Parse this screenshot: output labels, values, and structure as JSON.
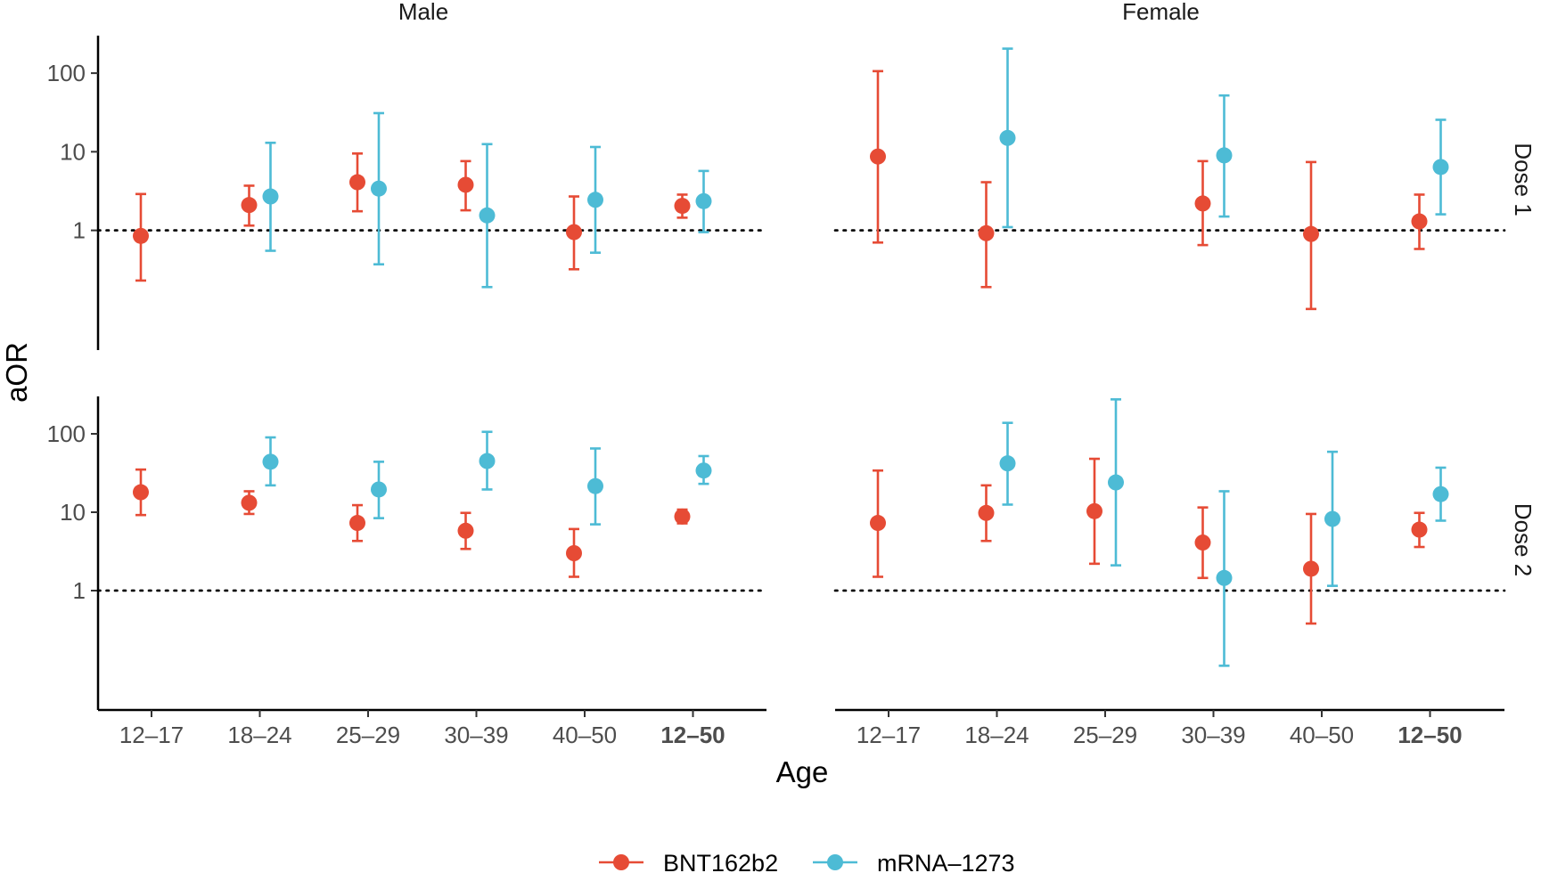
{
  "chart_data": {
    "type": "scatter",
    "subtype": "point-range (point estimate with 95% CI error bars), faceted",
    "xlabel": "Age",
    "ylabel": "aOR",
    "y_scale": "log10",
    "y_ticks": [
      1,
      10,
      100
    ],
    "y_tick_labels": [
      "1",
      "10",
      "100"
    ],
    "reference_line": {
      "y": 1,
      "style": "dotted"
    },
    "categories": [
      "12–17",
      "18–24",
      "25–29",
      "30–39",
      "40–50",
      "12–50"
    ],
    "bold_categories": [
      "12–50"
    ],
    "column_facets": [
      "Male",
      "Female"
    ],
    "row_facets": [
      "Dose 1",
      "Dose 2"
    ],
    "legend": {
      "position": "bottom"
    },
    "series": [
      {
        "name": "BNT162b2",
        "color": "#E64B35"
      },
      {
        "name": "mRNA–1273",
        "color": "#4DBBD5"
      }
    ],
    "panels": [
      {
        "column": "Male",
        "row": "Dose 1",
        "ylim": [
          0.03,
          300
        ],
        "points": [
          {
            "series": "BNT162b2",
            "category": "12–17",
            "y": 0.85,
            "lo": 0.23,
            "hi": 2.9
          },
          {
            "series": "BNT162b2",
            "category": "18–24",
            "y": 2.1,
            "lo": 1.15,
            "hi": 3.7
          },
          {
            "series": "mRNA–1273",
            "category": "18–24",
            "y": 2.7,
            "lo": 0.55,
            "hi": 13
          },
          {
            "series": "BNT162b2",
            "category": "25–29",
            "y": 4.1,
            "lo": 1.75,
            "hi": 9.5
          },
          {
            "series": "mRNA–1273",
            "category": "25–29",
            "y": 3.4,
            "lo": 0.37,
            "hi": 31
          },
          {
            "series": "BNT162b2",
            "category": "30–39",
            "y": 3.8,
            "lo": 1.8,
            "hi": 7.6
          },
          {
            "series": "mRNA–1273",
            "category": "30–39",
            "y": 1.55,
            "lo": 0.19,
            "hi": 12.5
          },
          {
            "series": "BNT162b2",
            "category": "40–50",
            "y": 0.95,
            "lo": 0.32,
            "hi": 2.7
          },
          {
            "series": "mRNA–1273",
            "category": "40–50",
            "y": 2.45,
            "lo": 0.52,
            "hi": 11.5
          },
          {
            "series": "BNT162b2",
            "category": "12–50",
            "y": 2.05,
            "lo": 1.45,
            "hi": 2.85
          },
          {
            "series": "mRNA–1273",
            "category": "12–50",
            "y": 2.35,
            "lo": 0.95,
            "hi": 5.7
          }
        ]
      },
      {
        "column": "Female",
        "row": "Dose 1",
        "ylim": [
          0.03,
          300
        ],
        "points": [
          {
            "series": "BNT162b2",
            "category": "12–17",
            "y": 8.7,
            "lo": 0.7,
            "hi": 106
          },
          {
            "series": "BNT162b2",
            "category": "18–24",
            "y": 0.92,
            "lo": 0.19,
            "hi": 4.1
          },
          {
            "series": "mRNA–1273",
            "category": "18–24",
            "y": 15,
            "lo": 1.1,
            "hi": 205
          },
          {
            "series": "BNT162b2",
            "category": "30–39",
            "y": 2.2,
            "lo": 0.65,
            "hi": 7.6
          },
          {
            "series": "mRNA–1273",
            "category": "30–39",
            "y": 9,
            "lo": 1.5,
            "hi": 52
          },
          {
            "series": "BNT162b2",
            "category": "40–50",
            "y": 0.9,
            "lo": 0.1,
            "hi": 7.4
          },
          {
            "series": "BNT162b2",
            "category": "12–50",
            "y": 1.3,
            "lo": 0.58,
            "hi": 2.85
          },
          {
            "series": "mRNA–1273",
            "category": "12–50",
            "y": 6.4,
            "lo": 1.6,
            "hi": 25.5
          }
        ]
      },
      {
        "column": "Male",
        "row": "Dose 2",
        "ylim": [
          0.03,
          300
        ],
        "points": [
          {
            "series": "BNT162b2",
            "category": "12–17",
            "y": 18,
            "lo": 9.2,
            "hi": 35
          },
          {
            "series": "BNT162b2",
            "category": "18–24",
            "y": 13.2,
            "lo": 9.5,
            "hi": 18.5
          },
          {
            "series": "mRNA–1273",
            "category": "18–24",
            "y": 44,
            "lo": 22,
            "hi": 90
          },
          {
            "series": "BNT162b2",
            "category": "25–29",
            "y": 7.3,
            "lo": 4.3,
            "hi": 12.3
          },
          {
            "series": "mRNA–1273",
            "category": "25–29",
            "y": 19.5,
            "lo": 8.4,
            "hi": 44
          },
          {
            "series": "BNT162b2",
            "category": "30–39",
            "y": 5.8,
            "lo": 3.4,
            "hi": 9.8
          },
          {
            "series": "mRNA–1273",
            "category": "30–39",
            "y": 45,
            "lo": 19.5,
            "hi": 106
          },
          {
            "series": "BNT162b2",
            "category": "40–50",
            "y": 3,
            "lo": 1.5,
            "hi": 6.1
          },
          {
            "series": "mRNA–1273",
            "category": "40–50",
            "y": 21.5,
            "lo": 7,
            "hi": 65
          },
          {
            "series": "BNT162b2",
            "category": "12–50",
            "y": 8.8,
            "lo": 7.2,
            "hi": 10.8
          },
          {
            "series": "mRNA–1273",
            "category": "12–50",
            "y": 34,
            "lo": 23,
            "hi": 52
          }
        ]
      },
      {
        "column": "Female",
        "row": "Dose 2",
        "ylim": [
          0.03,
          300
        ],
        "points": [
          {
            "series": "BNT162b2",
            "category": "12–17",
            "y": 7.3,
            "lo": 1.5,
            "hi": 34
          },
          {
            "series": "BNT162b2",
            "category": "18–24",
            "y": 9.8,
            "lo": 4.3,
            "hi": 22
          },
          {
            "series": "mRNA–1273",
            "category": "18–24",
            "y": 42,
            "lo": 12.5,
            "hi": 138
          },
          {
            "series": "BNT162b2",
            "category": "25–29",
            "y": 10.3,
            "lo": 2.2,
            "hi": 48
          },
          {
            "series": "mRNA–1273",
            "category": "25–29",
            "y": 24,
            "lo": 2.1,
            "hi": 275
          },
          {
            "series": "BNT162b2",
            "category": "30–39",
            "y": 4.1,
            "lo": 1.45,
            "hi": 11.5
          },
          {
            "series": "mRNA–1273",
            "category": "30–39",
            "y": 1.45,
            "lo": 0.11,
            "hi": 18.5
          },
          {
            "series": "BNT162b2",
            "category": "40–50",
            "y": 1.9,
            "lo": 0.38,
            "hi": 9.5
          },
          {
            "series": "mRNA–1273",
            "category": "40–50",
            "y": 8.2,
            "lo": 1.15,
            "hi": 59
          },
          {
            "series": "BNT162b2",
            "category": "12–50",
            "y": 6,
            "lo": 3.6,
            "hi": 9.8
          },
          {
            "series": "mRNA–1273",
            "category": "12–50",
            "y": 17,
            "lo": 7.8,
            "hi": 37
          }
        ]
      }
    ]
  }
}
